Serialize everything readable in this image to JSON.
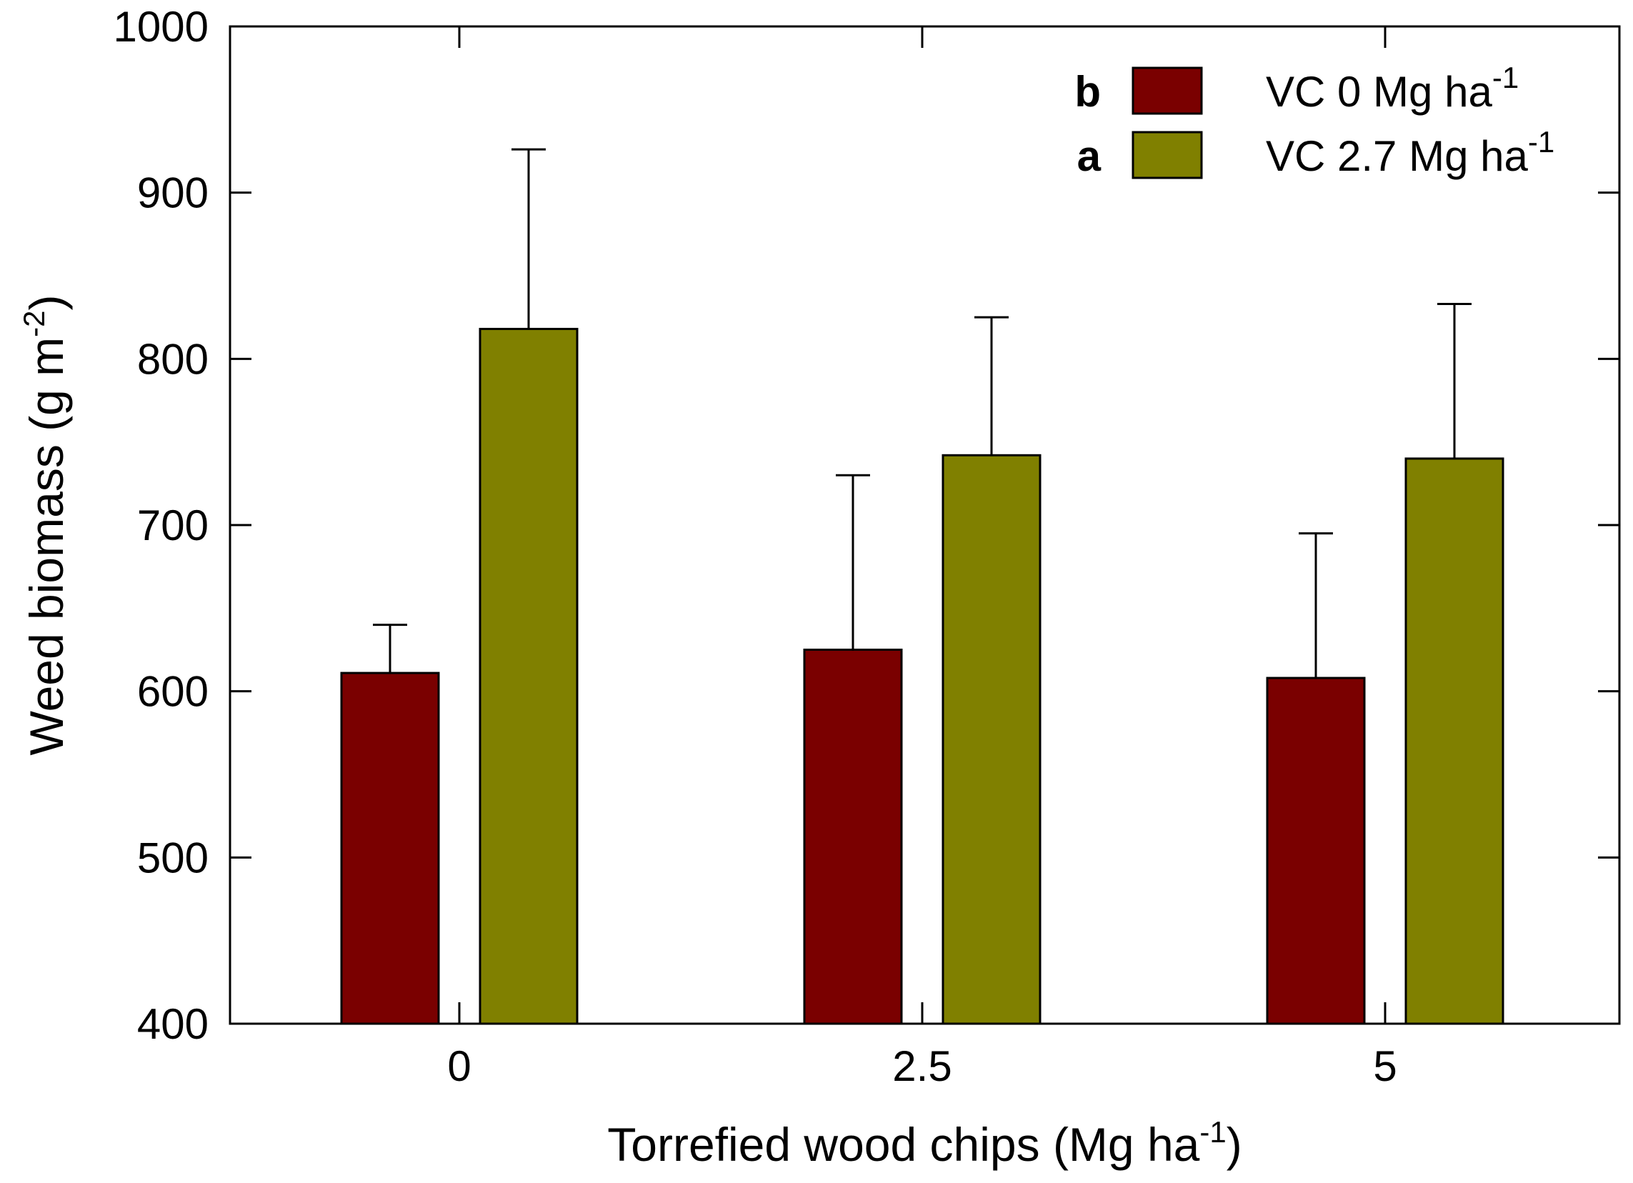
{
  "chart_data": {
    "type": "bar",
    "title": "",
    "xlabel": {
      "main": "Torrefied wood chips (Mg ha",
      "sup": "-1",
      "end": ")"
    },
    "ylabel": {
      "main": "Weed biomass (g m",
      "sup": "-2",
      "end": ")"
    },
    "ylim": [
      400,
      1000
    ],
    "yticks": [
      400,
      500,
      600,
      700,
      800,
      900,
      1000
    ],
    "categories": [
      "0",
      "2.5",
      "5"
    ],
    "series": [
      {
        "name": "VC 0 Mg ha-1",
        "label_main": "VC 0 Mg ha",
        "label_sup": "-1",
        "letter": "b",
        "color": "#7a0000",
        "values": [
          611,
          625,
          608
        ],
        "errors": [
          29,
          105,
          87
        ]
      },
      {
        "name": "VC 2.7 Mg ha-1",
        "label_main": "VC 2.7 Mg ha",
        "label_sup": "-1",
        "letter": "a",
        "color": "#808000",
        "values": [
          818,
          742,
          740
        ],
        "errors": [
          108,
          83,
          93
        ]
      }
    ],
    "legend_position": "top-right",
    "grid": false
  }
}
